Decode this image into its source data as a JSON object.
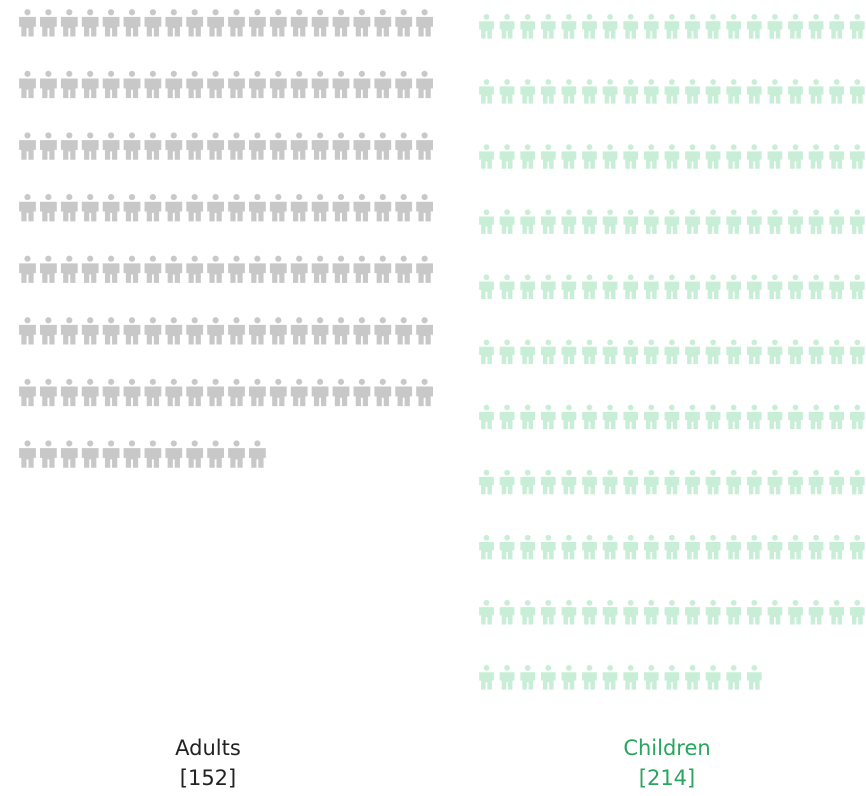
{
  "chart_data": {
    "type": "pictograph",
    "icon": "person-icon",
    "series": [
      {
        "name": "Adults",
        "count_label": "[152]",
        "value": 152,
        "color": "#c8c8c8",
        "label_color": "#222222"
      },
      {
        "name": "Children",
        "count_label": "[214]",
        "value": 214,
        "color": "#c9eed7",
        "label_color": "#2aa55f"
      }
    ]
  }
}
